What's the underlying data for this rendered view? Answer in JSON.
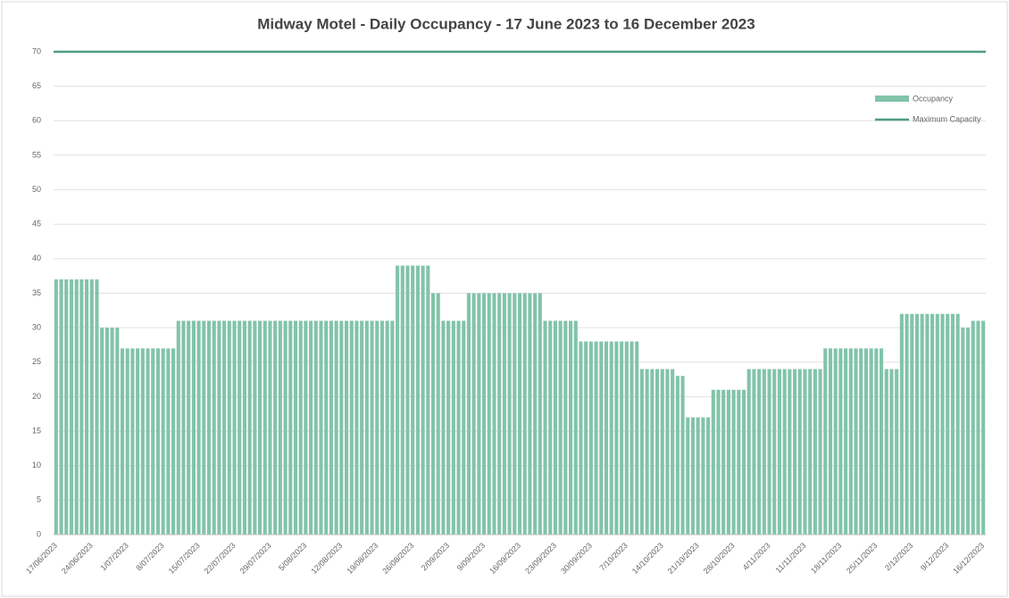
{
  "chart_data": {
    "type": "bar",
    "title": "Midway Motel - Daily Occupancy - 17 June 2023 to 16 December 2023",
    "categories": [
      "17/06/2023",
      null,
      null,
      null,
      null,
      null,
      null,
      "24/06/2023",
      null,
      null,
      null,
      null,
      null,
      null,
      "1/07/2023",
      null,
      null,
      null,
      null,
      null,
      null,
      "8/07/2023",
      null,
      null,
      null,
      null,
      null,
      null,
      "15/07/2023",
      null,
      null,
      null,
      null,
      null,
      null,
      "22/07/2023",
      null,
      null,
      null,
      null,
      null,
      null,
      "29/07/2023",
      null,
      null,
      null,
      null,
      null,
      null,
      "5/08/2023",
      null,
      null,
      null,
      null,
      null,
      null,
      "12/08/2023",
      null,
      null,
      null,
      null,
      null,
      null,
      "19/08/2023",
      null,
      null,
      null,
      null,
      null,
      null,
      "26/08/2023",
      null,
      null,
      null,
      null,
      null,
      null,
      "2/09/2023",
      null,
      null,
      null,
      null,
      null,
      null,
      "9/09/2023",
      null,
      null,
      null,
      null,
      null,
      null,
      "16/09/2023",
      null,
      null,
      null,
      null,
      null,
      null,
      "23/09/2023",
      null,
      null,
      null,
      null,
      null,
      null,
      "30/09/2023",
      null,
      null,
      null,
      null,
      null,
      null,
      "7/10/2023",
      null,
      null,
      null,
      null,
      null,
      null,
      "14/10/2023",
      null,
      null,
      null,
      null,
      null,
      null,
      "21/10/2023",
      null,
      null,
      null,
      null,
      null,
      null,
      "28/10/2023",
      null,
      null,
      null,
      null,
      null,
      null,
      "4/11/2023",
      null,
      null,
      null,
      null,
      null,
      null,
      "11/11/2023",
      null,
      null,
      null,
      null,
      null,
      null,
      "18/11/2023",
      null,
      null,
      null,
      null,
      null,
      null,
      "25/11/2023",
      null,
      null,
      null,
      null,
      null,
      null,
      "2/12/2023",
      null,
      null,
      null,
      null,
      null,
      null,
      "9/12/2023",
      null,
      null,
      null,
      null,
      null,
      null,
      "16/12/2023"
    ],
    "series": [
      {
        "name": "Occupancy",
        "color": "#82c4a9",
        "values": [
          37,
          37,
          37,
          37,
          37,
          37,
          37,
          37,
          37,
          30,
          30,
          30,
          30,
          27,
          27,
          27,
          27,
          27,
          27,
          27,
          27,
          27,
          27,
          27,
          31,
          31,
          31,
          31,
          31,
          31,
          31,
          31,
          31,
          31,
          31,
          31,
          31,
          31,
          31,
          31,
          31,
          31,
          31,
          31,
          31,
          31,
          31,
          31,
          31,
          31,
          31,
          31,
          31,
          31,
          31,
          31,
          31,
          31,
          31,
          31,
          31,
          31,
          31,
          31,
          31,
          31,
          31,
          39,
          39,
          39,
          39,
          39,
          39,
          39,
          35,
          35,
          31,
          31,
          31,
          31,
          31,
          35,
          35,
          35,
          35,
          35,
          35,
          35,
          35,
          35,
          35,
          35,
          35,
          35,
          35,
          35,
          31,
          31,
          31,
          31,
          31,
          31,
          31,
          28,
          28,
          28,
          28,
          28,
          28,
          28,
          28,
          28,
          28,
          28,
          28,
          24,
          24,
          24,
          24,
          24,
          24,
          24,
          23,
          23,
          17,
          17,
          17,
          17,
          17,
          21,
          21,
          21,
          21,
          21,
          21,
          21,
          24,
          24,
          24,
          24,
          24,
          24,
          24,
          24,
          24,
          24,
          24,
          24,
          24,
          24,
          24,
          27,
          27,
          27,
          27,
          27,
          27,
          27,
          27,
          27,
          27,
          27,
          27,
          24,
          24,
          24,
          32,
          32,
          32,
          32,
          32,
          32,
          32,
          32,
          32,
          32,
          32,
          32,
          30,
          30,
          31,
          31,
          31
        ]
      }
    ],
    "max_line": {
      "name": "Maximum Capacity",
      "value": 70,
      "color": "#4f9c7e"
    },
    "ylim": [
      0,
      70
    ],
    "yticks": [
      0,
      5,
      10,
      15,
      20,
      25,
      30,
      35,
      40,
      45,
      50,
      55,
      60,
      65,
      70
    ],
    "grid": true
  }
}
